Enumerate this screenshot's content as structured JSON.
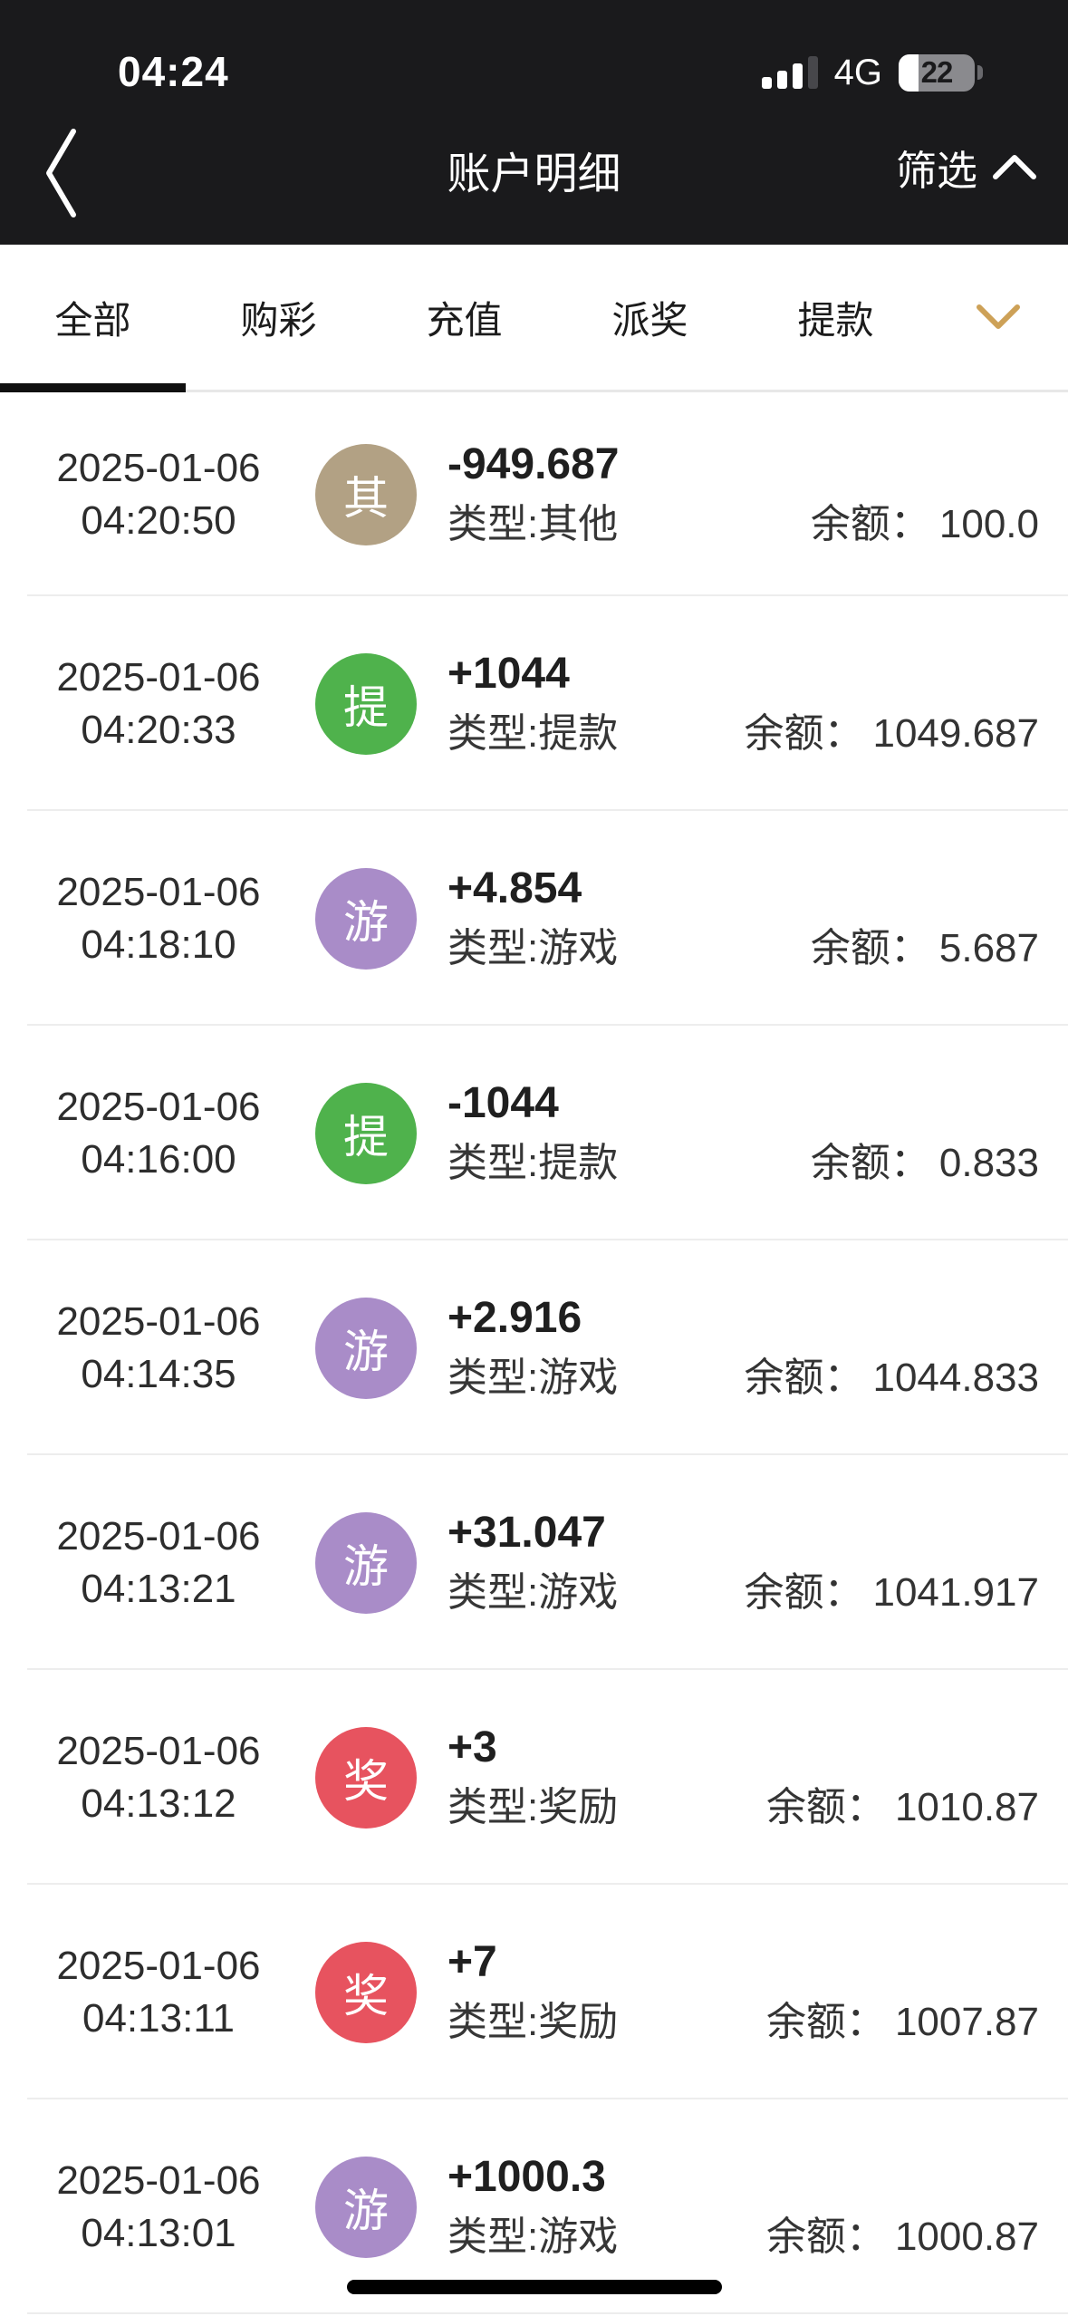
{
  "status_bar": {
    "time": "04:24",
    "network": "4G",
    "battery_level": "22"
  },
  "header": {
    "title": "账户明细",
    "filter_label": "筛选"
  },
  "tabs": {
    "items": [
      {
        "label": "全部",
        "active": true
      },
      {
        "label": "购彩",
        "active": false
      },
      {
        "label": "充值",
        "active": false
      },
      {
        "label": "派奖",
        "active": false
      },
      {
        "label": "提款",
        "active": false
      }
    ]
  },
  "icons": {
    "back": "chevron-left-icon",
    "filter": "chevron-up-icon",
    "more_tabs": "chevron-down-icon",
    "signal": "cellular-signal-icon",
    "battery": "battery-icon",
    "home": "home-indicator-bar"
  },
  "colors": {
    "header_bg": "#1a1a1c",
    "accent_gold": "#cda157",
    "active_tab_underline": "#101010",
    "divider": "#ededed",
    "badge_other": "#b2a184",
    "badge_withdraw": "#4fb24c",
    "badge_game": "#a98cc8",
    "badge_reward": "#e7535f"
  },
  "transactions": [
    {
      "date": "2025-01-06",
      "time": "04:20:50",
      "badge_char": "其",
      "badge_color": "#b2a184",
      "amount": "-949.687",
      "type_label": "类型:其他",
      "balance_label": "余额：",
      "balance": "100.0"
    },
    {
      "date": "2025-01-06",
      "time": "04:20:33",
      "badge_char": "提",
      "badge_color": "#4fb24c",
      "amount": "+1044",
      "type_label": "类型:提款",
      "balance_label": "余额：",
      "balance": "1049.687"
    },
    {
      "date": "2025-01-06",
      "time": "04:18:10",
      "badge_char": "游",
      "badge_color": "#a98cc8",
      "amount": "+4.854",
      "type_label": "类型:游戏",
      "balance_label": "余额：",
      "balance": "5.687"
    },
    {
      "date": "2025-01-06",
      "time": "04:16:00",
      "badge_char": "提",
      "badge_color": "#4fb24c",
      "amount": "-1044",
      "type_label": "类型:提款",
      "balance_label": "余额：",
      "balance": "0.833"
    },
    {
      "date": "2025-01-06",
      "time": "04:14:35",
      "badge_char": "游",
      "badge_color": "#a98cc8",
      "amount": "+2.916",
      "type_label": "类型:游戏",
      "balance_label": "余额：",
      "balance": "1044.833"
    },
    {
      "date": "2025-01-06",
      "time": "04:13:21",
      "badge_char": "游",
      "badge_color": "#a98cc8",
      "amount": "+31.047",
      "type_label": "类型:游戏",
      "balance_label": "余额：",
      "balance": "1041.917"
    },
    {
      "date": "2025-01-06",
      "time": "04:13:12",
      "badge_char": "奖",
      "badge_color": "#e7535f",
      "amount": "+3",
      "type_label": "类型:奖励",
      "balance_label": "余额：",
      "balance": "1010.87"
    },
    {
      "date": "2025-01-06",
      "time": "04:13:11",
      "badge_char": "奖",
      "badge_color": "#e7535f",
      "amount": "+7",
      "type_label": "类型:奖励",
      "balance_label": "余额：",
      "balance": "1007.87"
    },
    {
      "date": "2025-01-06",
      "time": "04:13:01",
      "badge_char": "游",
      "badge_color": "#a98cc8",
      "amount": "+1000.3",
      "type_label": "类型:游戏",
      "balance_label": "余额：",
      "balance": "1000.87"
    }
  ]
}
